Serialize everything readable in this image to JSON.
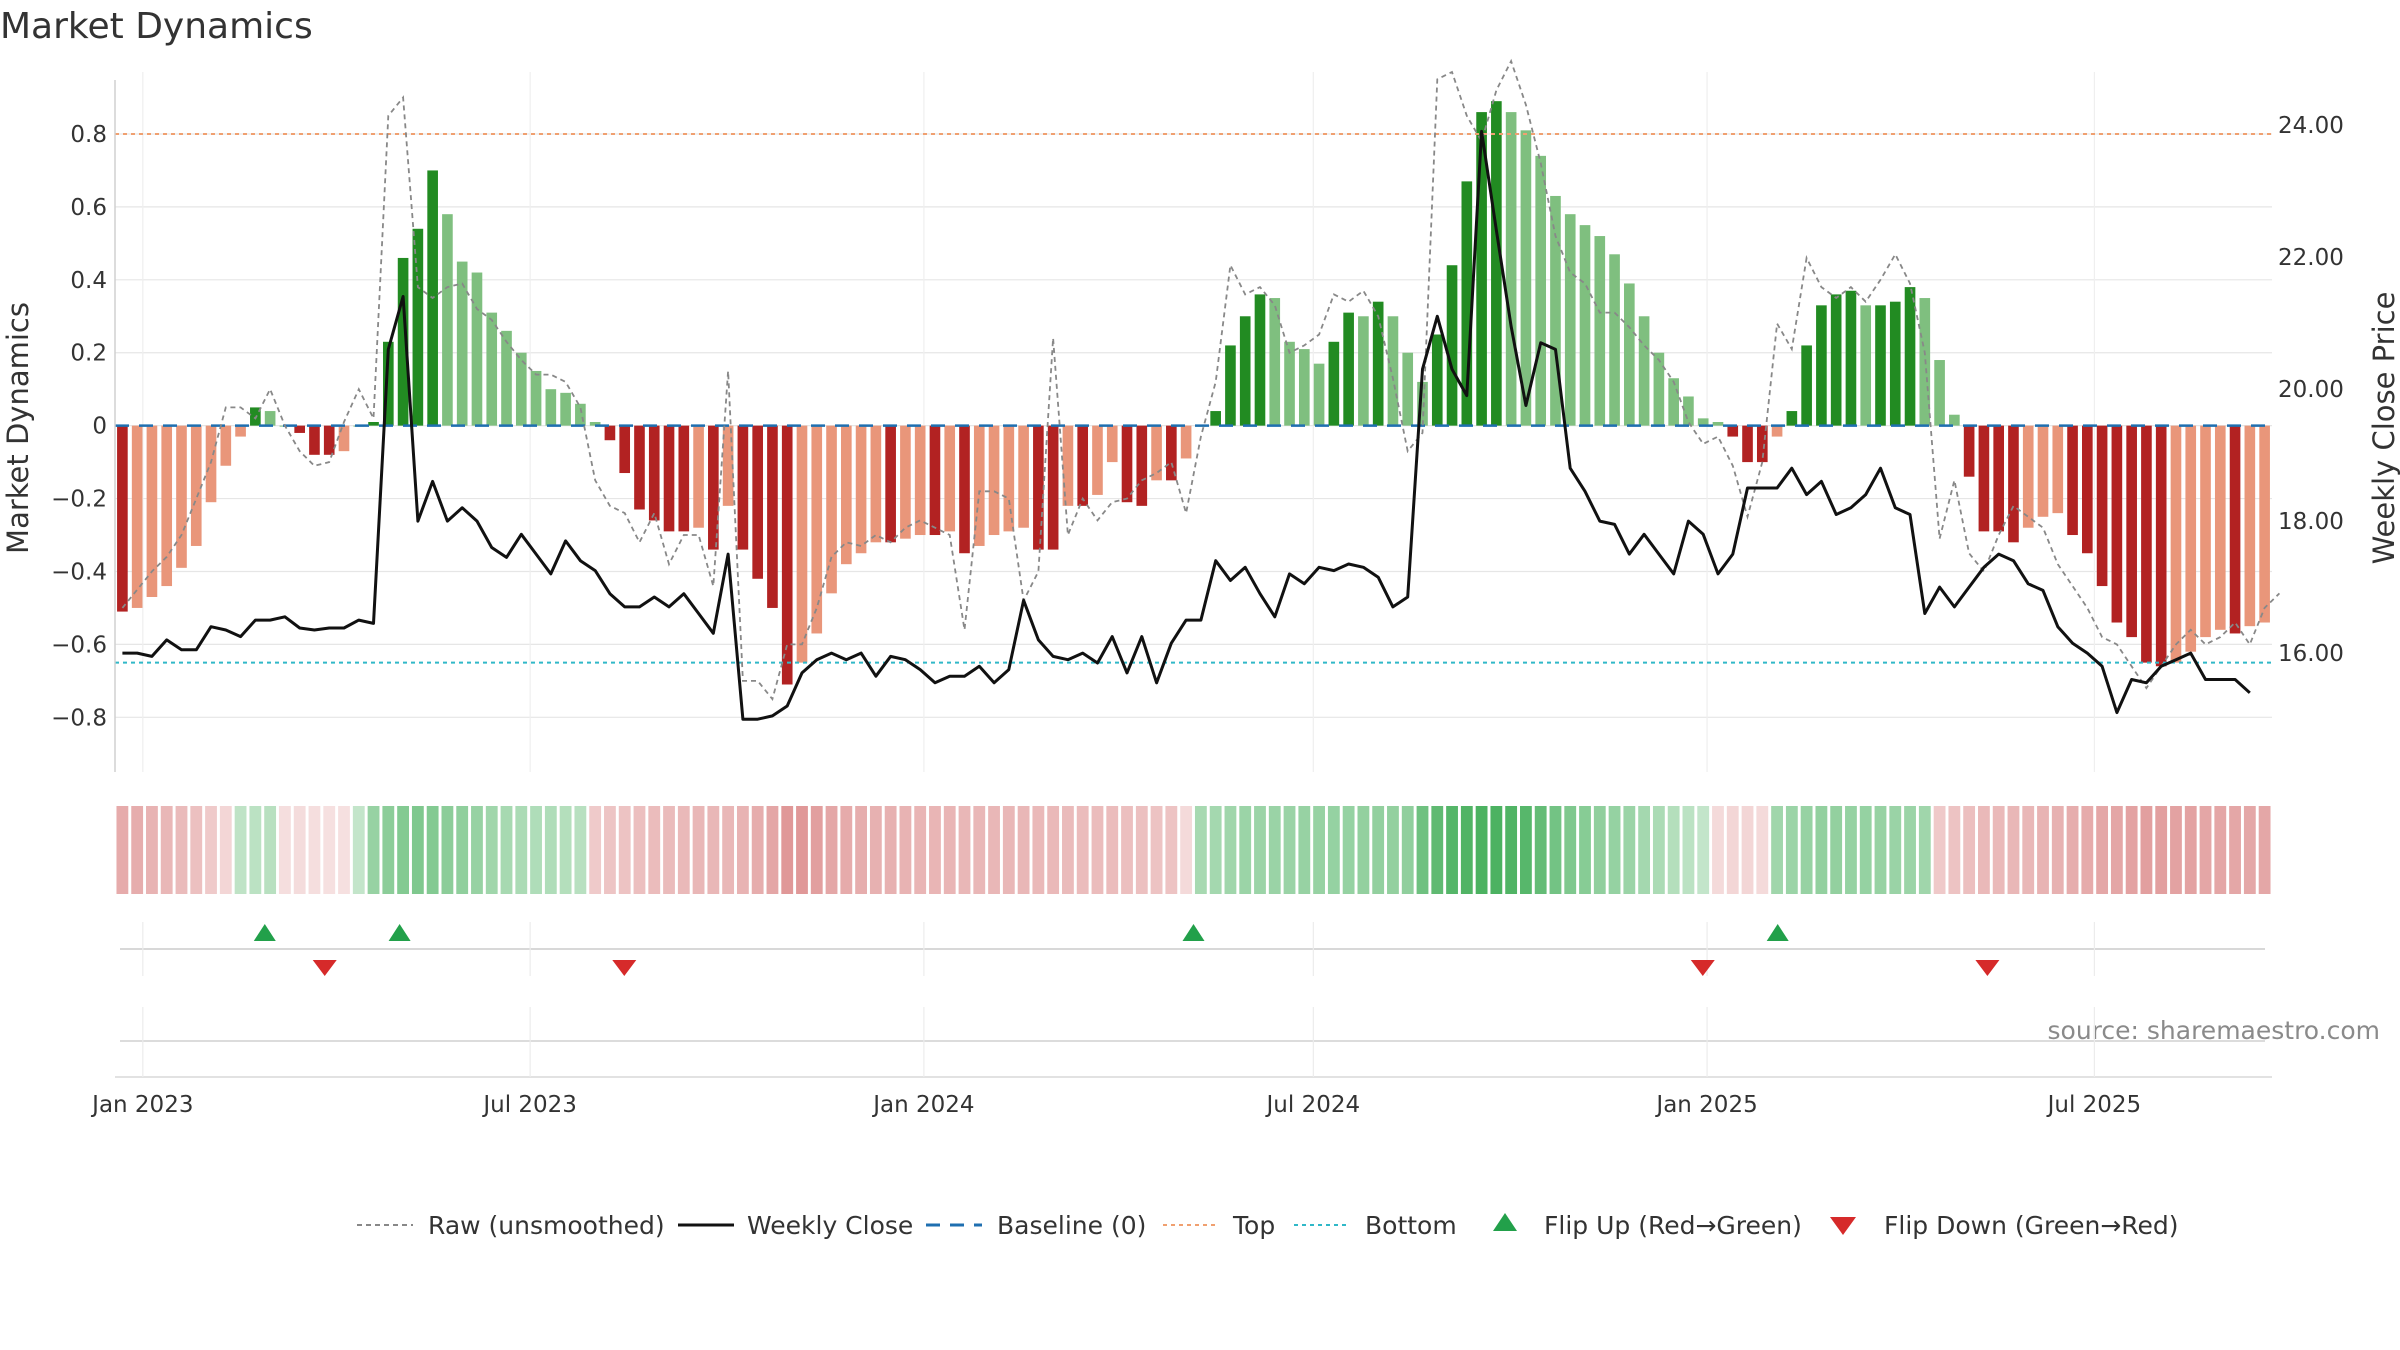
{
  "chart_data": {
    "type": "bar",
    "title": "Market Dynamics",
    "ylabel": "Market Dynamics",
    "y2label": "Weekly Close Price",
    "source": "source: sharemaestro.com",
    "ylim": [
      -0.95,
      0.97
    ],
    "y2lim": [
      14.2,
      24.8
    ],
    "y_ticks": [
      "0.8",
      "0.6",
      "0.4",
      "0.2",
      "0",
      "−0.2",
      "−0.4",
      "−0.6",
      "−0.8"
    ],
    "y_tick_values": [
      0.8,
      0.6,
      0.4,
      0.2,
      0,
      -0.2,
      -0.4,
      -0.6,
      -0.8
    ],
    "y2_ticks": [
      "24.00",
      "22.00",
      "20.00",
      "18.00",
      "16.00"
    ],
    "y2_tick_values": [
      24,
      22,
      20,
      18,
      16
    ],
    "x_start": "2022-12-19",
    "x_end": "2025-09-22",
    "x_ticks": [
      {
        "label": "Jan 2023",
        "date": "2023-01-01"
      },
      {
        "label": "Jul 2023",
        "date": "2023-07-01"
      },
      {
        "label": "Jan 2024",
        "date": "2024-01-01"
      },
      {
        "label": "Jul 2024",
        "date": "2024-07-01"
      },
      {
        "label": "Jan 2025",
        "date": "2025-01-01"
      },
      {
        "label": "Jul 2025",
        "date": "2025-07-01"
      }
    ],
    "reference_lines": {
      "top": 0.8,
      "bottom": -0.65,
      "baseline": 0
    },
    "colors": {
      "strong_green": "#228b22",
      "light_green": "#7fbf7f",
      "strong_red": "#b22222",
      "light_red": "#e9967a",
      "top": "#f0a070",
      "bottom": "#30b8c8",
      "baseline": "#1f6fb0",
      "raw": "#888888",
      "close": "#111111",
      "flip_up": "#22a04a",
      "flip_down": "#d62a2a"
    },
    "dynamics": [
      -0.51,
      -0.5,
      -0.47,
      -0.44,
      -0.39,
      -0.33,
      -0.21,
      -0.11,
      -0.03,
      0.05,
      0.04,
      0.0,
      -0.02,
      -0.08,
      -0.08,
      -0.07,
      0.0,
      0.01,
      0.23,
      0.46,
      0.54,
      0.7,
      0.58,
      0.45,
      0.42,
      0.31,
      0.26,
      0.2,
      0.15,
      0.1,
      0.09,
      0.06,
      0.01,
      -0.04,
      -0.13,
      -0.23,
      -0.26,
      -0.29,
      -0.29,
      -0.28,
      -0.34,
      -0.22,
      -0.34,
      -0.42,
      -0.5,
      -0.71,
      -0.65,
      -0.57,
      -0.46,
      -0.38,
      -0.35,
      -0.32,
      -0.32,
      -0.31,
      -0.3,
      -0.3,
      -0.29,
      -0.35,
      -0.33,
      -0.3,
      -0.29,
      -0.28,
      -0.34,
      -0.34,
      -0.22,
      -0.22,
      -0.19,
      -0.1,
      -0.21,
      -0.22,
      -0.15,
      -0.15,
      -0.09,
      0.0,
      0.04,
      0.22,
      0.3,
      0.36,
      0.35,
      0.23,
      0.21,
      0.17,
      0.23,
      0.31,
      0.3,
      0.34,
      0.3,
      0.2,
      0.12,
      0.25,
      0.44,
      0.67,
      0.86,
      0.89,
      0.86,
      0.81,
      0.74,
      0.63,
      0.58,
      0.55,
      0.52,
      0.47,
      0.39,
      0.3,
      0.2,
      0.13,
      0.08,
      0.02,
      0.01,
      -0.03,
      -0.1,
      -0.1,
      -0.03,
      0.04,
      0.22,
      0.33,
      0.36,
      0.37,
      0.33,
      0.33,
      0.34,
      0.38,
      0.35,
      0.18,
      0.03,
      -0.14,
      -0.29,
      -0.29,
      -0.32,
      -0.28,
      -0.25,
      -0.24,
      -0.3,
      -0.35,
      -0.44,
      -0.54,
      -0.58,
      -0.65,
      -0.66,
      -0.65,
      -0.62,
      -0.58,
      -0.56,
      -0.57,
      -0.55,
      -0.54
    ],
    "raw": [
      -0.5,
      -0.45,
      -0.4,
      -0.36,
      -0.3,
      -0.2,
      -0.1,
      0.05,
      0.05,
      0.02,
      0.1,
      0.0,
      -0.07,
      -0.11,
      -0.1,
      0.01,
      0.1,
      0.02,
      0.85,
      0.9,
      0.38,
      0.35,
      0.38,
      0.39,
      0.32,
      0.29,
      0.23,
      0.18,
      0.14,
      0.14,
      0.12,
      0.05,
      -0.15,
      -0.22,
      -0.24,
      -0.32,
      -0.24,
      -0.38,
      -0.3,
      -0.3,
      -0.44,
      0.15,
      -0.7,
      -0.7,
      -0.75,
      -0.6,
      -0.6,
      -0.5,
      -0.36,
      -0.32,
      -0.33,
      -0.3,
      -0.32,
      -0.28,
      -0.26,
      -0.28,
      -0.3,
      -0.56,
      -0.18,
      -0.18,
      -0.2,
      -0.48,
      -0.4,
      0.24,
      -0.3,
      -0.2,
      -0.26,
      -0.21,
      -0.2,
      -0.15,
      -0.13,
      -0.1,
      -0.24,
      -0.03,
      0.12,
      0.44,
      0.36,
      0.38,
      0.33,
      0.2,
      0.22,
      0.25,
      0.36,
      0.34,
      0.37,
      0.3,
      0.13,
      -0.07,
      -0.02,
      0.95,
      0.97,
      0.85,
      0.78,
      0.92,
      1.0,
      0.88,
      0.72,
      0.52,
      0.42,
      0.39,
      0.31,
      0.31,
      0.27,
      0.22,
      0.18,
      0.12,
      0.01,
      -0.05,
      -0.03,
      -0.11,
      -0.25,
      -0.1,
      0.28,
      0.21,
      0.46,
      0.38,
      0.35,
      0.38,
      0.34,
      0.4,
      0.47,
      0.39,
      0.2,
      -0.31,
      -0.15,
      -0.35,
      -0.4,
      -0.3,
      -0.22,
      -0.25,
      -0.28,
      -0.38,
      -0.44,
      -0.5,
      -0.58,
      -0.6,
      -0.66,
      -0.72,
      -0.66,
      -0.6,
      -0.56,
      -0.6,
      -0.58,
      -0.54,
      -0.6,
      -0.5,
      -0.46
    ],
    "close": [
      16.0,
      16.0,
      15.95,
      16.2,
      16.05,
      16.05,
      16.4,
      16.35,
      16.25,
      16.5,
      16.5,
      16.55,
      16.38,
      16.35,
      16.38,
      16.38,
      16.5,
      16.45,
      20.6,
      21.4,
      18.0,
      18.6,
      18.0,
      18.2,
      18.0,
      17.6,
      17.45,
      17.8,
      17.5,
      17.2,
      17.7,
      17.4,
      17.25,
      16.9,
      16.7,
      16.7,
      16.85,
      16.7,
      16.9,
      16.6,
      16.3,
      17.5,
      15.0,
      15.0,
      15.05,
      15.2,
      15.7,
      15.9,
      16.0,
      15.9,
      16.0,
      15.65,
      15.95,
      15.9,
      15.75,
      15.55,
      15.65,
      15.65,
      15.8,
      15.55,
      15.75,
      16.8,
      16.2,
      15.95,
      15.9,
      16.0,
      15.85,
      16.25,
      15.7,
      16.25,
      15.55,
      16.15,
      16.5,
      16.5,
      17.4,
      17.1,
      17.3,
      16.9,
      16.55,
      17.2,
      17.05,
      17.3,
      17.25,
      17.35,
      17.3,
      17.15,
      16.7,
      16.85,
      20.3,
      21.1,
      20.3,
      19.9,
      23.9,
      22.4,
      20.95,
      19.75,
      20.7,
      20.6,
      18.8,
      18.45,
      18.0,
      17.95,
      17.5,
      17.8,
      17.5,
      17.2,
      18.0,
      17.8,
      17.2,
      17.5,
      18.5,
      18.5,
      18.5,
      18.8,
      18.4,
      18.6,
      18.1,
      18.2,
      18.4,
      18.8,
      18.2,
      18.1,
      16.6,
      17.0,
      16.7,
      17.0,
      17.3,
      17.5,
      17.4,
      17.05,
      16.95,
      16.4,
      16.15,
      16.0,
      15.8,
      15.1,
      15.6,
      15.55,
      15.8,
      15.9,
      16.0,
      15.6,
      15.6,
      15.6,
      15.4
    ],
    "strip_values": [
      -0.42,
      -0.4,
      -0.36,
      -0.34,
      -0.31,
      -0.27,
      -0.2,
      -0.12,
      0.12,
      0.14,
      0.16,
      -0.07,
      -0.08,
      -0.07,
      -0.06,
      -0.06,
      0.1,
      0.32,
      0.38,
      0.42,
      0.44,
      0.42,
      0.38,
      0.36,
      0.32,
      0.28,
      0.24,
      0.22,
      0.2,
      0.2,
      0.18,
      0.16,
      -0.2,
      -0.24,
      -0.26,
      -0.28,
      -0.3,
      -0.31,
      -0.32,
      -0.33,
      -0.33,
      -0.34,
      -0.36,
      -0.4,
      -0.46,
      -0.55,
      -0.55,
      -0.5,
      -0.45,
      -0.42,
      -0.4,
      -0.38,
      -0.37,
      -0.36,
      -0.35,
      -0.35,
      -0.35,
      -0.34,
      -0.34,
      -0.34,
      -0.33,
      -0.33,
      -0.32,
      -0.32,
      -0.31,
      -0.3,
      -0.3,
      -0.29,
      -0.28,
      -0.27,
      -0.26,
      -0.25,
      -0.1,
      0.24,
      0.26,
      0.28,
      0.3,
      0.3,
      0.31,
      0.31,
      0.32,
      0.32,
      0.33,
      0.33,
      0.34,
      0.35,
      0.35,
      0.36,
      0.52,
      0.6,
      0.66,
      0.68,
      0.7,
      0.7,
      0.68,
      0.64,
      0.58,
      0.5,
      0.44,
      0.4,
      0.36,
      0.33,
      0.3,
      0.26,
      0.22,
      0.18,
      0.14,
      0.1,
      -0.1,
      -0.12,
      -0.12,
      -0.1,
      0.28,
      0.3,
      0.32,
      0.34,
      0.34,
      0.33,
      0.33,
      0.32,
      0.31,
      0.3,
      0.28,
      -0.22,
      -0.25,
      -0.28,
      -0.32,
      -0.32,
      -0.34,
      -0.34,
      -0.36,
      -0.38,
      -0.4,
      -0.42,
      -0.44,
      -0.46,
      -0.48,
      -0.5,
      -0.5,
      -0.48,
      -0.48,
      -0.46,
      -0.46,
      -0.45,
      -0.45,
      -0.44
    ],
    "flips_up": [
      "2023-02-27",
      "2023-05-01",
      "2024-05-06",
      "2025-02-03"
    ],
    "flips_down": [
      "2023-03-27",
      "2023-08-14",
      "2024-12-30",
      "2025-05-12"
    ],
    "legend": [
      {
        "label": "Raw (unsmoothed)",
        "marker": "dotted-line"
      },
      {
        "label": "Weekly Close",
        "marker": "solid-line"
      },
      {
        "label": "Baseline (0)",
        "marker": "dashed-line"
      },
      {
        "label": "Top",
        "marker": "dotted-orange"
      },
      {
        "label": "Bottom",
        "marker": "dotted-cyan"
      },
      {
        "label": "Flip Up (Red→Green)",
        "marker": "triangle-up"
      },
      {
        "label": "Flip Down (Green→Red)",
        "marker": "triangle-down"
      }
    ],
    "legend_position": "bottom-center",
    "grid": true
  }
}
